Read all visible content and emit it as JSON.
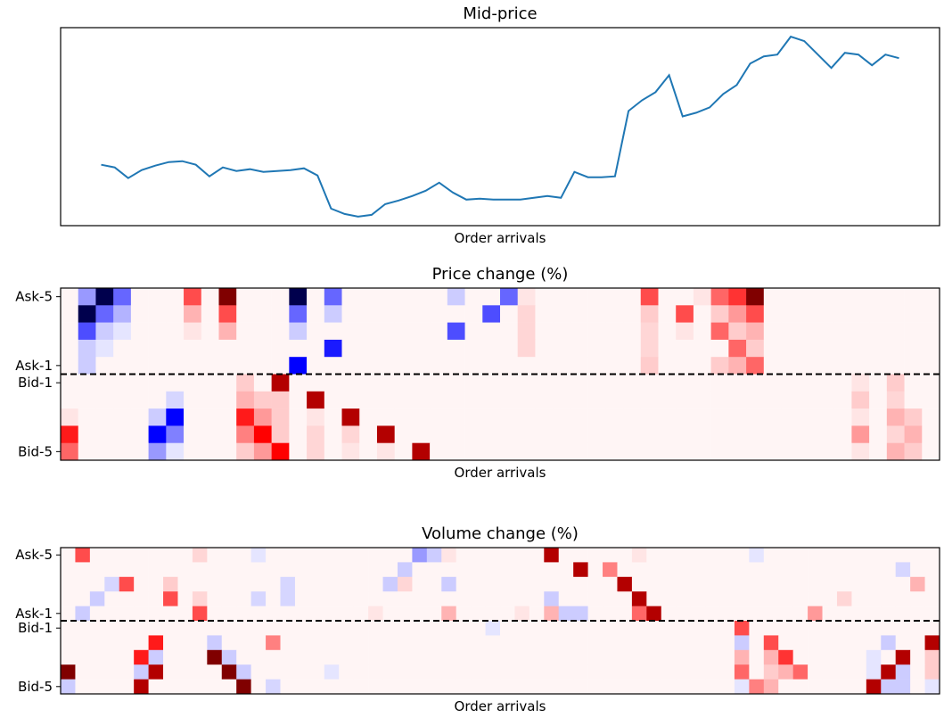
{
  "chart_data": [
    {
      "type": "line",
      "title": "Mid-price",
      "xlabel": "Order arrivals",
      "color": "#1f77b4",
      "values": [
        66,
        63,
        51,
        60,
        65,
        69,
        70,
        66,
        53,
        63,
        59,
        61,
        58,
        59,
        60,
        62,
        54,
        17,
        11,
        8,
        10,
        22,
        26,
        31,
        37,
        46,
        35,
        27,
        28,
        27,
        27,
        27,
        29,
        31,
        29,
        58,
        52,
        52,
        53,
        126,
        138,
        147,
        166,
        120,
        124,
        130,
        145,
        155,
        179,
        187,
        189,
        209,
        204,
        189,
        174,
        191,
        189,
        177,
        189,
        185
      ]
    },
    {
      "type": "heatmap",
      "title": "Price change (%)",
      "xlabel": "Order arrivals",
      "colormap": "seismic",
      "vlim": [
        -1,
        1
      ],
      "rows": [
        "Ask-5",
        null,
        null,
        null,
        "Ask-1",
        "Bid-1",
        null,
        null,
        null,
        "Bid-5"
      ],
      "values": [
        [
          0.02,
          -0.2,
          -1,
          -0.3,
          0.02,
          0.02,
          0.02,
          0.35,
          0.02,
          1,
          0.02,
          0.02,
          0.02,
          -1,
          0.02,
          -0.3,
          0.02,
          0.02,
          0.02,
          0.02,
          0.02,
          0.02,
          -0.1,
          0.02,
          0.02,
          -0.3,
          0.05,
          0.02,
          0.02,
          0.02,
          0.02,
          0.02,
          0.02,
          0.35,
          0.02,
          0.02,
          0.05,
          0.3,
          0.4,
          1,
          0.02,
          0.02,
          0.02,
          0.02,
          0.02,
          0.02,
          0.02,
          0.02,
          0.02,
          0.02
        ],
        [
          0.02,
          -1,
          -0.3,
          -0.15,
          0.02,
          0.02,
          0.02,
          0.15,
          0.02,
          0.35,
          0.02,
          0.02,
          0.02,
          -0.3,
          0.02,
          -0.1,
          0.02,
          0.02,
          0.02,
          0.02,
          0.02,
          0.02,
          0.02,
          0.02,
          -0.35,
          0.02,
          0.08,
          0.02,
          0.02,
          0.02,
          0.02,
          0.02,
          0.02,
          0.1,
          0.02,
          0.35,
          0.02,
          0.1,
          0.2,
          0.35,
          0.02,
          0.02,
          0.02,
          0.02,
          0.02,
          0.02,
          0.02,
          0.02,
          0.02,
          0.02
        ],
        [
          0.02,
          -0.35,
          -0.1,
          -0.05,
          0.02,
          0.02,
          0.02,
          0.05,
          0.02,
          0.15,
          0.02,
          0.02,
          0.02,
          -0.1,
          0.02,
          0.02,
          0.02,
          0.02,
          0.02,
          0.02,
          0.02,
          0.02,
          -0.35,
          0.02,
          0.02,
          0.02,
          0.08,
          0.02,
          0.02,
          0.02,
          0.02,
          0.02,
          0.02,
          0.08,
          0.02,
          0.05,
          0.02,
          0.3,
          0.1,
          0.15,
          0.02,
          0.02,
          0.02,
          0.02,
          0.02,
          0.02,
          0.02,
          0.02,
          0.02,
          0.02
        ],
        [
          0.02,
          -0.1,
          -0.05,
          0.02,
          0.02,
          0.02,
          0.02,
          0.02,
          0.02,
          0.02,
          0.02,
          0.02,
          0.02,
          0.02,
          0.02,
          -0.45,
          0.02,
          0.02,
          0.02,
          0.02,
          0.02,
          0.02,
          0.02,
          0.02,
          0.02,
          0.02,
          0.08,
          0.02,
          0.02,
          0.02,
          0.02,
          0.02,
          0.02,
          0.08,
          0.02,
          0.02,
          0.02,
          0.02,
          0.3,
          0.1,
          0.02,
          0.02,
          0.02,
          0.02,
          0.02,
          0.02,
          0.02,
          0.02,
          0.02,
          0.02
        ],
        [
          0.02,
          -0.1,
          0.02,
          0.02,
          0.02,
          0.02,
          0.02,
          0.02,
          0.02,
          0.02,
          0.02,
          0.02,
          0.02,
          -0.5,
          0.02,
          0.02,
          0.02,
          0.02,
          0.02,
          0.02,
          0.02,
          0.02,
          0.02,
          0.02,
          0.02,
          0.02,
          0.02,
          0.02,
          0.02,
          0.02,
          0.02,
          0.02,
          0.02,
          0.1,
          0.02,
          0.02,
          0.02,
          0.1,
          0.15,
          0.3,
          0.02,
          0.02,
          0.02,
          0.02,
          0.02,
          0.02,
          0.02,
          0.02,
          0.02,
          0.02
        ],
        [
          0.02,
          0.02,
          0.02,
          0.02,
          0.02,
          0.02,
          0.02,
          0.02,
          0.02,
          0.02,
          0.1,
          0.02,
          0.8,
          0.02,
          0.02,
          0.02,
          0.02,
          0.02,
          0.02,
          0.02,
          0.02,
          0.02,
          0.02,
          0.02,
          0.02,
          0.02,
          0.02,
          0.02,
          0.02,
          0.02,
          0.02,
          0.02,
          0.02,
          0.02,
          0.02,
          0.02,
          0.02,
          0.02,
          0.02,
          0.02,
          0.02,
          0.02,
          0.02,
          0.02,
          0.02,
          0.05,
          0.02,
          0.1,
          0.02,
          0.02
        ],
        [
          0.02,
          0.02,
          0.02,
          0.02,
          0.02,
          0.02,
          -0.08,
          0.02,
          0.02,
          0.02,
          0.15,
          0.1,
          0.1,
          0.02,
          0.8,
          0.02,
          0.02,
          0.02,
          0.02,
          0.02,
          0.02,
          0.02,
          0.02,
          0.02,
          0.02,
          0.02,
          0.02,
          0.02,
          0.02,
          0.02,
          0.02,
          0.02,
          0.02,
          0.02,
          0.02,
          0.02,
          0.02,
          0.02,
          0.02,
          0.02,
          0.02,
          0.02,
          0.02,
          0.02,
          0.02,
          0.1,
          0.02,
          0.08,
          0.02,
          0.02
        ],
        [
          0.05,
          0.02,
          0.02,
          0.02,
          0.02,
          -0.1,
          -0.5,
          0.02,
          0.02,
          0.02,
          0.45,
          0.2,
          0.1,
          0.02,
          0.05,
          0.02,
          0.8,
          0.02,
          0.02,
          0.02,
          0.02,
          0.02,
          0.02,
          0.02,
          0.02,
          0.02,
          0.02,
          0.02,
          0.02,
          0.02,
          0.02,
          0.02,
          0.02,
          0.02,
          0.02,
          0.02,
          0.02,
          0.02,
          0.02,
          0.02,
          0.02,
          0.02,
          0.02,
          0.02,
          0.02,
          0.05,
          0.02,
          0.15,
          0.1,
          0.02
        ],
        [
          0.45,
          0.02,
          0.02,
          0.02,
          0.02,
          -0.5,
          -0.25,
          0.02,
          0.02,
          0.02,
          0.25,
          0.5,
          0.1,
          0.02,
          0.08,
          0.02,
          0.08,
          0.02,
          0.8,
          0.02,
          0.02,
          0.02,
          0.02,
          0.02,
          0.02,
          0.02,
          0.02,
          0.02,
          0.02,
          0.02,
          0.02,
          0.02,
          0.02,
          0.02,
          0.02,
          0.02,
          0.02,
          0.02,
          0.02,
          0.02,
          0.02,
          0.02,
          0.02,
          0.02,
          0.02,
          0.2,
          0.02,
          0.08,
          0.15,
          0.02
        ],
        [
          0.3,
          0.02,
          0.02,
          0.02,
          0.02,
          -0.2,
          -0.05,
          0.02,
          0.02,
          0.02,
          0.1,
          0.2,
          0.5,
          0.02,
          0.08,
          0.02,
          0.05,
          0.02,
          0.05,
          0.02,
          0.8,
          0.02,
          0.02,
          0.02,
          0.02,
          0.02,
          0.02,
          0.02,
          0.02,
          0.02,
          0.02,
          0.02,
          0.02,
          0.02,
          0.02,
          0.02,
          0.02,
          0.02,
          0.02,
          0.02,
          0.02,
          0.02,
          0.02,
          0.02,
          0.02,
          0.05,
          0.02,
          0.15,
          0.1,
          0.02
        ]
      ]
    },
    {
      "type": "heatmap",
      "title": "Volume change (%)",
      "xlabel": "Order arrivals",
      "colormap": "seismic",
      "vlim": [
        -1,
        1
      ],
      "rows": [
        "Ask-5",
        null,
        null,
        null,
        "Ask-1",
        "Bid-1",
        null,
        null,
        null,
        "Bid-5"
      ],
      "values": [
        [
          0.02,
          0.35,
          0.02,
          0.02,
          0.02,
          0.02,
          0.02,
          0.02,
          0.02,
          0.08,
          0.02,
          0.02,
          0.02,
          -0.05,
          0.02,
          0.02,
          0.02,
          0.02,
          0.02,
          0.02,
          0.02,
          0.02,
          0.02,
          0.02,
          -0.2,
          -0.1,
          0.05,
          0.02,
          0.02,
          0.02,
          0.02,
          0.02,
          0.02,
          0.8,
          0.02,
          0.02,
          0.02,
          0.02,
          0.02,
          0.05,
          0.02,
          0.02,
          0.02,
          0.02,
          0.02,
          0.02,
          0.02,
          -0.05,
          0.02,
          0.02,
          0.02,
          0.02,
          0.02,
          0.02,
          0.02,
          0.02,
          0.02,
          0.02,
          0.02,
          0.02
        ],
        [
          0.02,
          0.02,
          0.02,
          0.02,
          0.02,
          0.02,
          0.02,
          0.02,
          0.02,
          0.02,
          0.02,
          0.02,
          0.02,
          0.02,
          0.02,
          0.02,
          0.02,
          0.02,
          0.02,
          0.02,
          0.02,
          0.02,
          0.02,
          -0.1,
          0.02,
          0.02,
          0.02,
          0.02,
          0.02,
          0.02,
          0.02,
          0.02,
          0.02,
          0.02,
          0.02,
          0.8,
          0.02,
          0.25,
          0.02,
          0.02,
          0.02,
          0.02,
          0.02,
          0.02,
          0.02,
          0.02,
          0.02,
          0.02,
          0.02,
          0.02,
          0.02,
          0.02,
          0.02,
          0.02,
          0.02,
          0.02,
          0.02,
          -0.08,
          0.02,
          0.02
        ],
        [
          0.02,
          0.02,
          0.02,
          -0.08,
          0.35,
          0.02,
          0.02,
          0.1,
          0.02,
          0.02,
          0.02,
          0.02,
          0.02,
          0.02,
          0.02,
          -0.08,
          0.02,
          0.02,
          0.02,
          0.02,
          0.02,
          0.02,
          -0.1,
          0.08,
          0.02,
          0.02,
          -0.1,
          0.02,
          0.02,
          0.02,
          0.02,
          0.02,
          0.02,
          0.02,
          0.02,
          0.02,
          0.02,
          0.02,
          0.8,
          0.02,
          0.02,
          0.02,
          0.02,
          0.02,
          0.02,
          0.02,
          0.02,
          0.02,
          0.02,
          0.02,
          0.02,
          0.02,
          0.02,
          0.02,
          0.02,
          0.02,
          0.02,
          0.02,
          0.15,
          0.02
        ],
        [
          0.02,
          0.02,
          -0.1,
          0.02,
          0.02,
          0.02,
          0.02,
          0.35,
          0.02,
          0.08,
          0.02,
          0.02,
          0.02,
          -0.08,
          0.02,
          -0.08,
          0.02,
          0.02,
          0.02,
          0.02,
          0.02,
          0.02,
          0.02,
          0.02,
          0.02,
          0.02,
          0.02,
          0.02,
          0.02,
          0.02,
          0.02,
          0.02,
          0.02,
          -0.1,
          0.02,
          0.02,
          0.02,
          0.02,
          0.02,
          0.8,
          0.02,
          0.02,
          0.02,
          0.02,
          0.02,
          0.02,
          0.02,
          0.02,
          0.02,
          0.02,
          0.02,
          0.02,
          0.02,
          0.08,
          0.02,
          0.02,
          0.02,
          0.02,
          0.02,
          0.02
        ],
        [
          0.02,
          -0.1,
          0.02,
          0.02,
          0.02,
          0.02,
          0.02,
          0.02,
          0.02,
          0.35,
          0.02,
          0.02,
          0.02,
          0.02,
          0.02,
          0.02,
          0.02,
          0.02,
          0.02,
          0.02,
          0.02,
          0.05,
          0.02,
          0.02,
          0.02,
          0.02,
          0.15,
          0.02,
          0.02,
          0.02,
          0.02,
          0.05,
          0.02,
          0.15,
          -0.1,
          -0.1,
          0.02,
          0.02,
          0.02,
          0.3,
          0.8,
          0.02,
          0.02,
          0.02,
          0.02,
          0.02,
          0.02,
          0.02,
          0.02,
          0.02,
          0.02,
          0.2,
          0.02,
          0.02,
          0.02,
          0.02,
          0.02,
          0.02,
          0.02,
          0.02
        ],
        [
          0.02,
          0.02,
          0.02,
          0.02,
          0.02,
          0.02,
          0.02,
          0.02,
          0.02,
          0.02,
          0.02,
          0.02,
          0.02,
          0.02,
          0.02,
          0.02,
          0.02,
          0.02,
          0.02,
          0.02,
          0.02,
          0.02,
          0.02,
          0.02,
          0.02,
          0.02,
          0.02,
          0.02,
          0.02,
          -0.05,
          0.02,
          0.02,
          0.02,
          0.02,
          0.02,
          0.02,
          0.02,
          0.02,
          0.02,
          0.02,
          0.02,
          0.02,
          0.02,
          0.02,
          0.02,
          0.02,
          0.35,
          0.02,
          0.02,
          0.02,
          0.02,
          0.02,
          0.02,
          0.02,
          0.02,
          0.02,
          0.02,
          0.02,
          0.02,
          0.02
        ],
        [
          0.02,
          0.02,
          0.02,
          0.02,
          0.02,
          0.02,
          0.45,
          0.02,
          0.02,
          0.02,
          -0.1,
          0.02,
          0.02,
          0.02,
          0.25,
          0.02,
          0.02,
          0.02,
          0.02,
          0.02,
          0.02,
          0.02,
          0.02,
          0.02,
          0.02,
          0.02,
          0.02,
          0.02,
          0.02,
          0.02,
          0.02,
          0.02,
          0.02,
          0.02,
          0.02,
          0.02,
          0.02,
          0.02,
          0.02,
          0.02,
          0.02,
          0.02,
          0.02,
          0.02,
          0.02,
          0.02,
          -0.1,
          0.02,
          0.35,
          0.02,
          0.02,
          0.02,
          0.02,
          0.02,
          0.02,
          0.02,
          -0.1,
          0.02,
          0.02,
          0.8
        ],
        [
          0.02,
          0.02,
          0.02,
          0.02,
          0.02,
          0.45,
          -0.1,
          0.02,
          0.02,
          0.02,
          1,
          -0.1,
          0.02,
          0.02,
          0.02,
          0.02,
          0.02,
          0.02,
          0.02,
          0.02,
          0.02,
          0.02,
          0.02,
          0.02,
          0.02,
          0.02,
          0.02,
          0.02,
          0.02,
          0.02,
          0.02,
          0.02,
          0.02,
          0.02,
          0.02,
          0.02,
          0.02,
          0.02,
          0.02,
          0.02,
          0.02,
          0.02,
          0.02,
          0.02,
          0.02,
          0.02,
          0.15,
          0.02,
          0.15,
          0.4,
          0.02,
          0.02,
          0.02,
          0.02,
          0.02,
          -0.05,
          0.02,
          0.8,
          0.02,
          0.1
        ],
        [
          1,
          0.02,
          0.02,
          0.02,
          0.02,
          -0.1,
          0.8,
          0.02,
          0.02,
          0.02,
          0.02,
          1,
          -0.1,
          0.02,
          0.02,
          0.02,
          0.02,
          0.02,
          -0.05,
          0.02,
          0.02,
          0.02,
          0.02,
          0.02,
          0.02,
          0.02,
          0.02,
          0.02,
          0.02,
          0.02,
          0.02,
          0.02,
          0.02,
          0.02,
          0.02,
          0.02,
          0.02,
          0.02,
          0.02,
          0.02,
          0.02,
          0.02,
          0.02,
          0.02,
          0.02,
          0.02,
          0.3,
          0.02,
          0.1,
          0.15,
          0.3,
          0.02,
          0.02,
          0.02,
          0.02,
          -0.05,
          0.8,
          -0.1,
          0.02,
          0.1
        ],
        [
          -0.1,
          0.02,
          0.02,
          0.02,
          0.02,
          0.8,
          0.02,
          0.02,
          0.02,
          0.02,
          0.02,
          0.02,
          1,
          0.02,
          -0.08,
          0.02,
          0.02,
          0.02,
          0.02,
          0.02,
          0.02,
          0.02,
          0.02,
          0.02,
          0.02,
          0.02,
          0.02,
          0.02,
          0.02,
          0.02,
          0.02,
          0.02,
          0.02,
          0.02,
          0.02,
          0.02,
          0.02,
          0.02,
          0.02,
          0.02,
          0.02,
          0.02,
          0.02,
          0.02,
          0.02,
          0.02,
          -0.05,
          0.25,
          0.15,
          0.02,
          0.02,
          0.02,
          0.02,
          0.02,
          0.02,
          0.8,
          -0.1,
          -0.1,
          0.02,
          -0.05
        ]
      ]
    }
  ]
}
